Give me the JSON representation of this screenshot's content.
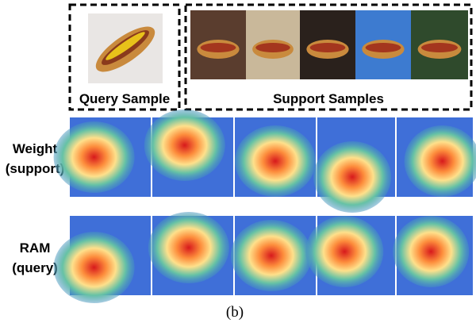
{
  "query_panel": {
    "label": "Query Sample"
  },
  "support_panel": {
    "label": "Support Samples"
  },
  "rows": [
    {
      "label_lines": [
        "Weight",
        "(support)"
      ]
    },
    {
      "label_lines": [
        "RAM",
        "(query)"
      ]
    }
  ],
  "caption": "(b)"
}
